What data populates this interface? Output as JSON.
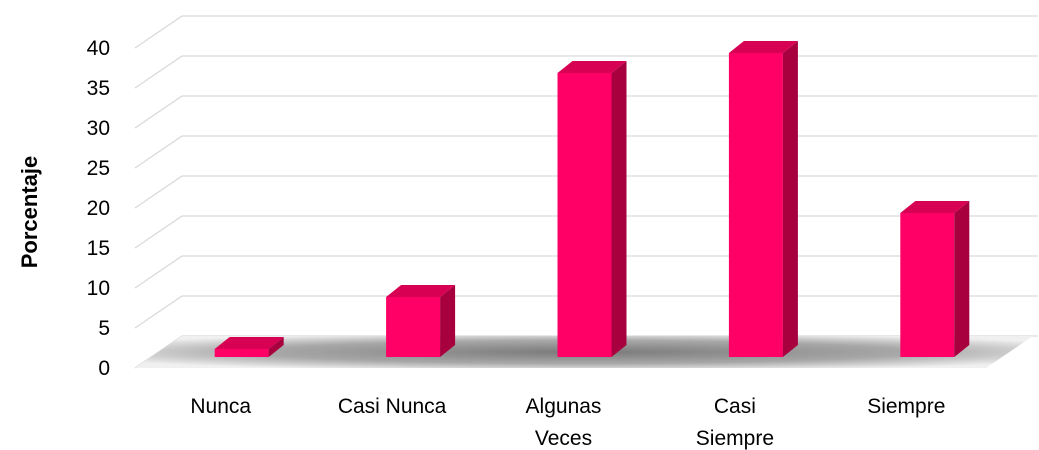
{
  "chart_data": {
    "type": "bar",
    "categories": [
      [
        "Nunca"
      ],
      [
        "Casi Nunca"
      ],
      [
        "Algunas",
        "Veces"
      ],
      [
        "Casi",
        "Siempre"
      ],
      [
        "Siempre"
      ]
    ],
    "values": [
      1,
      7.5,
      35.5,
      38,
      18
    ],
    "title": "",
    "xlabel": "",
    "ylabel": "Porcentaje",
    "ylim": [
      0,
      40
    ],
    "yticks": [
      0,
      5,
      10,
      15,
      20,
      25,
      30,
      35,
      40
    ],
    "grid": true,
    "legend": "none",
    "style": "3d-column",
    "colors": {
      "bar_front": "#ff0066",
      "bar_side": "#a8003f",
      "bar_top": "#d80052",
      "floor": "#8c8c8c",
      "grid": "#d9d9d9"
    }
  }
}
